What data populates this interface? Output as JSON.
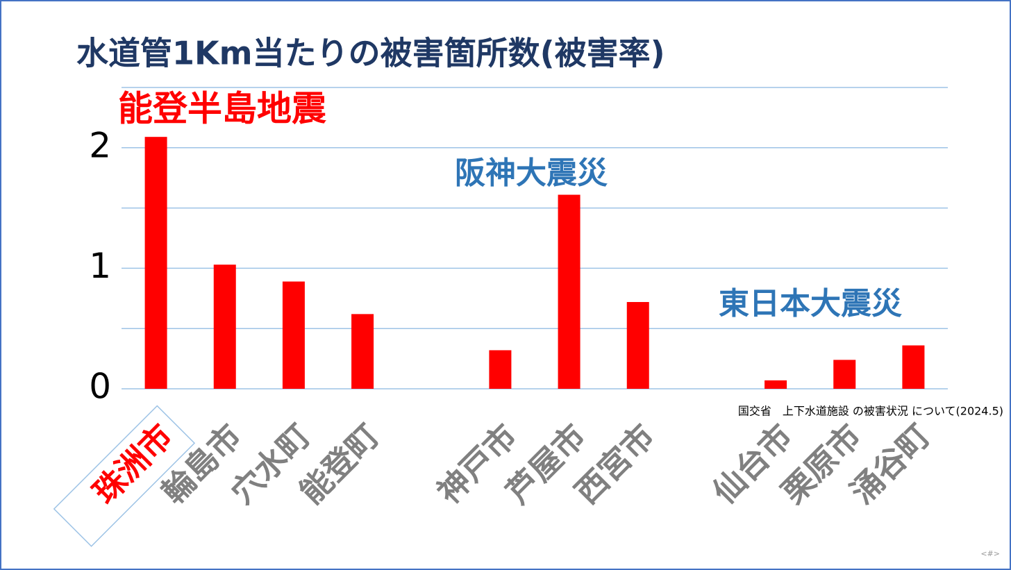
{
  "chart_data": {
    "type": "bar",
    "title": "水道管1Km当たりの被害箇所数(被害率)",
    "categories": [
      "珠洲市",
      "輪島市",
      "穴水町",
      "能登町",
      null,
      "神戸市",
      "芦屋市",
      "西宮市",
      null,
      "仙台市",
      "栗原市",
      "涌谷町"
    ],
    "values": [
      2.09,
      1.03,
      0.89,
      0.62,
      null,
      0.32,
      1.61,
      0.72,
      null,
      0.07,
      0.24,
      0.36
    ],
    "color": "#ff0000",
    "x_label_colors": [
      "#ff0000",
      "#808080",
      "#808080",
      "#808080",
      null,
      "#808080",
      "#808080",
      "#808080",
      null,
      "#808080",
      "#808080",
      "#808080"
    ],
    "ylim": [
      0,
      2.5
    ],
    "yticks": [
      0,
      1,
      2
    ],
    "minor_yticks": [
      0.5,
      1.5,
      2.5
    ],
    "grid": true,
    "grid_color": "#9dc3e6",
    "annotations": [
      {
        "text": "能登半島地震",
        "color": "#ff0000"
      },
      {
        "text": "阪神大震災",
        "color": "#2e75b6"
      },
      {
        "text": "東日本大震災",
        "color": "#2e75b6"
      }
    ],
    "source": "国交省　上下水道施設 の被害状況 について(2024.5)",
    "page_number": "<#>"
  }
}
